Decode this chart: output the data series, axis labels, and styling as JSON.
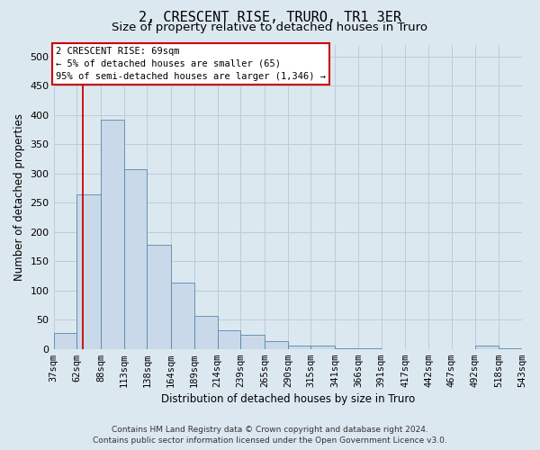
{
  "title": "2, CRESCENT RISE, TRURO, TR1 3ER",
  "subtitle": "Size of property relative to detached houses in Truro",
  "xlabel": "Distribution of detached houses by size in Truro",
  "ylabel": "Number of detached properties",
  "footer_line1": "Contains HM Land Registry data © Crown copyright and database right 2024.",
  "footer_line2": "Contains public sector information licensed under the Open Government Licence v3.0.",
  "annotation_line1": "2 CRESCENT RISE: 69sqm",
  "annotation_line2": "← 5% of detached houses are smaller (65)",
  "annotation_line3": "95% of semi-detached houses are larger (1,346) →",
  "bar_edges": [
    37,
    62,
    88,
    113,
    138,
    164,
    189,
    214,
    239,
    265,
    290,
    315,
    341,
    366,
    391,
    417,
    442,
    467,
    492,
    518,
    543
  ],
  "bar_heights": [
    28,
    265,
    392,
    308,
    178,
    113,
    57,
    32,
    24,
    13,
    6,
    5,
    1,
    1,
    0,
    0,
    0,
    0,
    5,
    1,
    5
  ],
  "bar_color": "#c9d9ea",
  "bar_edge_color": "#5588aa",
  "grid_color": "#bbccdd",
  "vline_x": 69,
  "vline_color": "#cc0000",
  "annotation_box_color": "#cc0000",
  "ylim": [
    0,
    520
  ],
  "yticks": [
    0,
    50,
    100,
    150,
    200,
    250,
    300,
    350,
    400,
    450,
    500
  ],
  "background_color": "#dce8f0",
  "plot_bg_color": "#dce8f0",
  "title_fontsize": 11,
  "subtitle_fontsize": 9.5,
  "axis_label_fontsize": 8.5,
  "tick_label_fontsize": 7.5,
  "footer_fontsize": 6.5
}
